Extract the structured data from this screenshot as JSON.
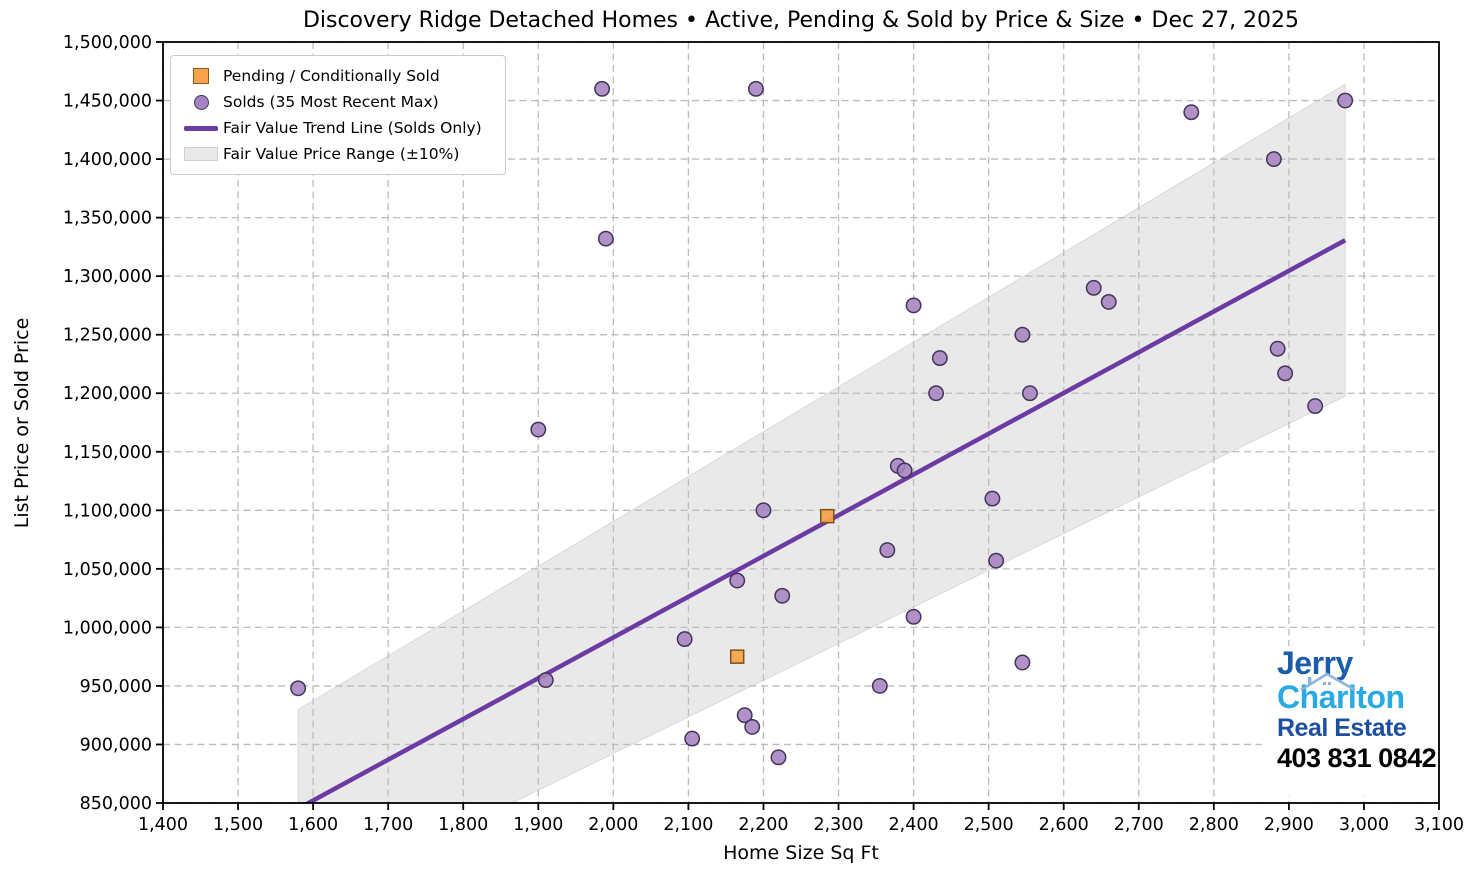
{
  "title": "Discovery Ridge Detached Homes • Active, Pending & Sold by Price & Size • Dec 27, 2025",
  "chart_data": {
    "type": "scatter",
    "xlabel": "Home Size Sq Ft",
    "ylabel": "List Price or Sold Price",
    "xlim": [
      1400,
      3100
    ],
    "ylim": [
      850000,
      1500000
    ],
    "x_ticks": [
      1400,
      1500,
      1600,
      1700,
      1800,
      1900,
      2000,
      2100,
      2200,
      2300,
      2400,
      2500,
      2600,
      2700,
      2800,
      2900,
      3000,
      3100
    ],
    "y_ticks": [
      850000,
      900000,
      950000,
      1000000,
      1050000,
      1100000,
      1150000,
      1200000,
      1250000,
      1300000,
      1350000,
      1400000,
      1450000,
      1500000
    ],
    "grid": "dashed",
    "grid_color": "#bcbcbc",
    "legend_position": "upper-left",
    "legend": [
      {
        "label": "Pending / Conditionally Sold",
        "type": "square",
        "color": "#f7a34c"
      },
      {
        "label": "Solds (35 Most Recent Max)",
        "type": "circle",
        "color": "#a583c2"
      },
      {
        "label": "Fair Value Trend Line (Solds Only)",
        "type": "line",
        "color": "#6b3ba3"
      },
      {
        "label": "Fair Value Price Range (±10%)",
        "type": "band",
        "color": "#e9e9e9"
      }
    ],
    "series": [
      {
        "name": "Pending / Conditionally Sold",
        "type": "square",
        "color": "#f7a34c",
        "edge": "#7a511d",
        "points": [
          [
            2165,
            975000
          ],
          [
            2285,
            1095000
          ]
        ]
      },
      {
        "name": "Solds (35 Most Recent Max)",
        "type": "circle",
        "color": "#a583c2",
        "edge": "#43345a",
        "points": [
          [
            1580,
            948000
          ],
          [
            1900,
            1169000
          ],
          [
            1910,
            955000
          ],
          [
            1985,
            1460000
          ],
          [
            1990,
            1332000
          ],
          [
            2095,
            990000
          ],
          [
            2105,
            905000
          ],
          [
            2165,
            1040000
          ],
          [
            2175,
            925000
          ],
          [
            2185,
            915000
          ],
          [
            2190,
            1460000
          ],
          [
            2200,
            1100000
          ],
          [
            2220,
            889000
          ],
          [
            2225,
            1027000
          ],
          [
            2355,
            950000
          ],
          [
            2365,
            1066000
          ],
          [
            2379,
            1138000
          ],
          [
            2388,
            1134000
          ],
          [
            2400,
            1275000
          ],
          [
            2400,
            1009000
          ],
          [
            2430,
            1200000
          ],
          [
            2435,
            1230000
          ],
          [
            2505,
            1110000
          ],
          [
            2510,
            1057000
          ],
          [
            2545,
            1250000
          ],
          [
            2545,
            970000
          ],
          [
            2555,
            1200000
          ],
          [
            2640,
            1290000
          ],
          [
            2660,
            1278000
          ],
          [
            2770,
            1440000
          ],
          [
            2880,
            1400000
          ],
          [
            2885,
            1238000
          ],
          [
            2895,
            1217000
          ],
          [
            2935,
            1189000
          ],
          [
            2975,
            1450000
          ]
        ]
      },
      {
        "name": "Fair Value Trend Line (Solds Only)",
        "type": "line",
        "color": "#6b3ba3",
        "points": [
          [
            1580,
            845200
          ],
          [
            2975,
            1330700
          ]
        ]
      },
      {
        "name": "Fair Value Price Range (±10%)",
        "type": "band",
        "color": "#e9e9e9",
        "edge": "#d9d9d9",
        "upper": [
          [
            1580,
            929700
          ],
          [
            2975,
            1463800
          ]
        ],
        "lower": [
          [
            1580,
            760700
          ],
          [
            2975,
            1197600
          ]
        ]
      }
    ]
  },
  "logo": {
    "line1": "Jerry",
    "line2": "Charlton",
    "line3": "Real Estate",
    "phone": "403 831 0842",
    "color1": "#1b5cab",
    "color2": "#29aae3",
    "color3": "#1c4f9e",
    "color_phone": "#000000",
    "roof_color": "#8cb4dc"
  }
}
